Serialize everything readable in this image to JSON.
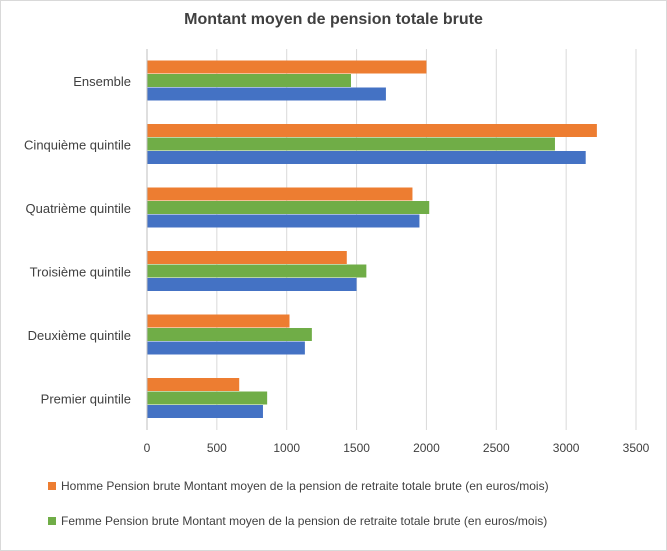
{
  "chart_data": {
    "type": "bar",
    "orientation": "horizontal",
    "title": "Montant moyen de pension totale brute",
    "categories": [
      "Ensemble",
      "Cinquième quintile",
      "Quatrième quintile",
      "Troisième quintile",
      "Deuxième quintile",
      "Premier quintile"
    ],
    "series": [
      {
        "name": "Homme Pension brute Montant moyen de la pension de retraite totale brute (en euros/mois)",
        "color": "#ed7d31",
        "values": [
          2000,
          3220,
          1900,
          1430,
          1020,
          660
        ]
      },
      {
        "name": "Femme Pension brute Montant moyen de la pension de retraite totale brute (en euros/mois)",
        "color": "#70ad47",
        "values": [
          1460,
          2920,
          2020,
          1570,
          1180,
          860
        ]
      },
      {
        "name": "",
        "color": "#4472c4",
        "values": [
          1710,
          3140,
          1950,
          1500,
          1130,
          830
        ]
      }
    ],
    "xlim": [
      0,
      3500
    ],
    "xticks": [
      0,
      500,
      1000,
      1500,
      2000,
      2500,
      3000,
      3500
    ],
    "grid": true,
    "legend_position": "bottom"
  }
}
